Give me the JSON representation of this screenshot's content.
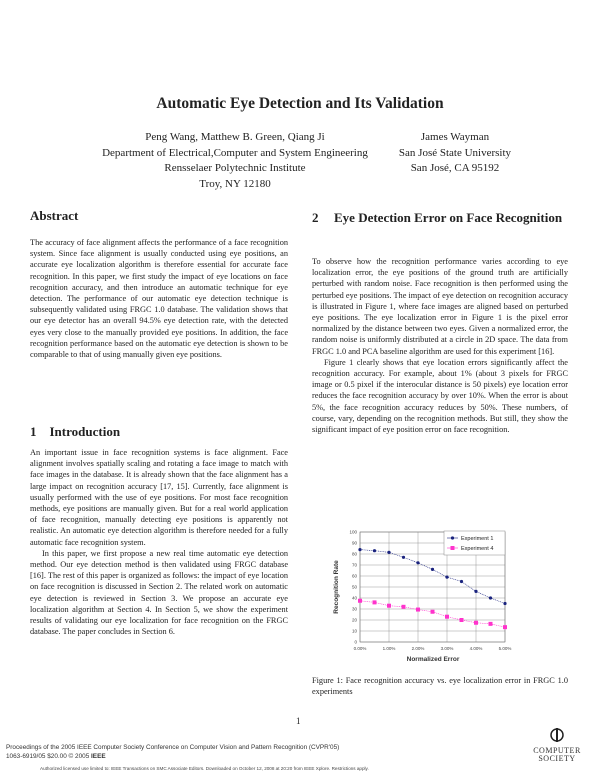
{
  "title": "Automatic Eye Detection and Its Validation",
  "authors_left": [
    "Peng Wang, Matthew B. Green, Qiang Ji",
    "Department of Electrical,Computer and System Engineering",
    "Rensselaer Polytechnic Institute",
    "Troy, NY 12180"
  ],
  "authors_right": [
    "James Wayman",
    "San José State University",
    "San José, CA 95192"
  ],
  "abstract": {
    "heading": "Abstract",
    "text": "The accuracy of face alignment affects the performance of a face recognition system. Since face alignment is usually conducted using eye positions, an accurate eye localization algorithm is therefore essential for accurate face recognition. In this paper, we first study the impact of eye locations on face recognition accuracy, and then introduce an automatic technique for eye detection. The performance of our automatic eye detection technique is subsequently validated using FRGC 1.0 database. The validation shows that our eye detector has an overall 94.5% eye detection rate, with the detected eyes very close to the manually provided eye positions. In addition, the face recognition performance based on the automatic eye detection is shown to be comparable to that of using manually given eye positions."
  },
  "intro": {
    "number": "1",
    "heading": "Introduction",
    "paragraphs": [
      "An important issue in face recognition systems is face alignment. Face alignment involves spatially scaling and rotating a face image to match with face images in the database. It is already shown that the face alignment has a large impact on recognition accuracy [17, 15]. Currently, face alignment is usually performed with the use of eye positions. For most face recognition methods, eye positions are manually given. But for a real world application of face recognition, manually detecting eye positions is apparently not realistic. An automatic eye detection algorithm is therefore needed for a fully automatic face recognition system.",
      "In this paper, we first propose a new real time automatic eye detection method. Our eye detection method is then validated using FRGC database [16]. The rest of this paper is organized as follows: the impact of eye location on face recognition is discussed in Section 2. The related work on automatic eye detection is reviewed in Section 3. We propose an accurate eye localization algorithm at Section 4. In Section 5, we show the experiment results of validating our eye localization for face recognition on the FRGC database. The paper concludes in Section 6."
    ]
  },
  "section2": {
    "number": "2",
    "heading": "Eye Detection Error on Face Recognition",
    "paragraphs": [
      "To observe how the recognition performance varies according to eye localization error, the eye positions of the ground truth are artificially perturbed with random noise. Face recognition is then performed using the perturbed eye positions. The impact of eye detection on recognition accuracy is illustrated in Figure 1, where face images are aligned based on perturbed eye positions. The eye localization error in Figure 1 is the pixel error normalized by the distance between two eyes. Given a normalized error, the random noise is uniformly distributed at a circle in 2D space. The data from FRGC 1.0 and PCA baseline algorithm are used for this experiment [16].",
      "Figure 1 clearly shows that eye location errors significantly affect the recognition accuracy. For example, about 1% (about 3 pixels for FRGC image or 0.5 pixel if the interocular distance is 50 pixels) eye location error reduces the face recognition accuracy by over 10%. When the error is about 5%, the face recognition accuracy reduces by 50%. These numbers, of course, vary, depending on the recognition methods. But still, they show the significant impact of eye position error on face recognition."
    ]
  },
  "figure_caption": "Figure 1: Face recognition accuracy vs. eye localization error in FRGC 1.0 experiments",
  "chart_data": {
    "type": "line",
    "xlabel": "Normalized Error",
    "ylabel": "Recognition Rate",
    "x": [
      0,
      0.5,
      1,
      1.5,
      2,
      2.5,
      3,
      3.5,
      4,
      4.5,
      5
    ],
    "xticks": [
      "0.00%",
      "1.00%",
      "2.00%",
      "3.00%",
      "4.00%",
      "5.00%"
    ],
    "xtick_values": [
      0,
      1,
      2,
      3,
      4,
      5
    ],
    "yticks": [
      "0",
      "10",
      "20",
      "30",
      "40",
      "50",
      "60",
      "70",
      "80",
      "90",
      "100"
    ],
    "ylim": [
      0,
      100
    ],
    "xlim": [
      0,
      5
    ],
    "grid": true,
    "legend": "top-right",
    "series": [
      {
        "name": "Experiment 1",
        "color": "#1a237e",
        "marker": "diamond",
        "values": [
          84,
          83,
          81.5,
          77,
          72,
          66,
          59,
          55,
          46,
          40,
          35
        ]
      },
      {
        "name": "Experiment 4",
        "color": "#ff33cc",
        "marker": "square",
        "values": [
          37.5,
          36,
          33,
          32,
          29.5,
          27.5,
          23,
          20,
          17.5,
          16.5,
          13.5
        ]
      }
    ]
  },
  "page_number": "1",
  "footer": {
    "line1": "Proceedings of the 2005 IEEE Computer Society Conference on Computer Vision and Pattern Recognition (CVPR'05)",
    "line2": "1063-6919/05 $20.00 © 2005 ",
    "ieee": "IEEE",
    "authorized": "Authorized licensed use limited to: IEEE Transactions on SMC Associate Editors. Downloaded on October 12, 2008 at 20:20 from IEEE Xplore. Restrictions apply.",
    "logo_text": "COMPUTER SOCIETY"
  }
}
